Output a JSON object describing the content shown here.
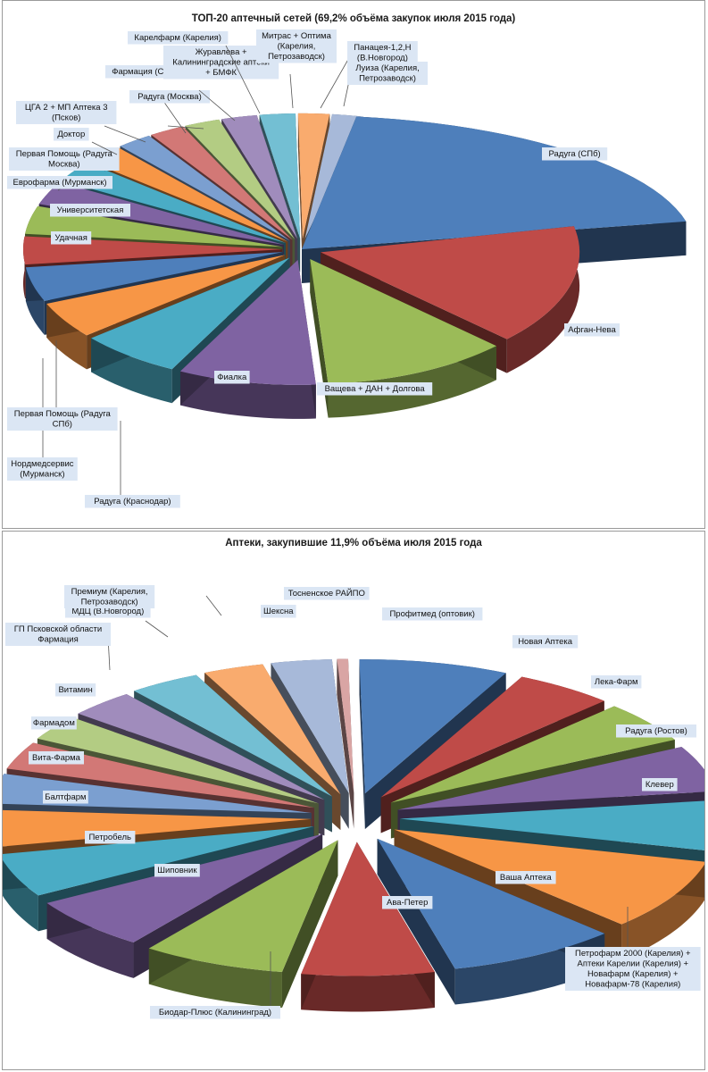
{
  "charts": [
    {
      "type": "pie",
      "title": "ТОП-20 аптечный сетей (69,2% объёма закупок июля 2015 года)",
      "slices": [
        {
          "label": "Радуга (СПб)",
          "color": "#4e7fbb"
        },
        {
          "label": "Афган-Нева",
          "color": "#bf4b48"
        },
        {
          "label": "Ващева + ДАН + Долгова",
          "color": "#9bbb58"
        },
        {
          "label": "Фиалка",
          "color": "#7f63a2"
        },
        {
          "label": "Радуга (Краснодар)",
          "color": "#4aacc5"
        },
        {
          "label": "Нордмедсервис (Мурманск)",
          "color": "#f79646"
        },
        {
          "label": "Первая Помощь (Радуга СПб)",
          "color": "#4e7fbb"
        },
        {
          "label": "Удачная",
          "color": "#bf4b48"
        },
        {
          "label": "Университетская",
          "color": "#9bbb58"
        },
        {
          "label": "Еврофарма (Мурманск)",
          "color": "#7f63a2"
        },
        {
          "label": "Первая Помощь (Радуга Москва)",
          "color": "#4aacc5"
        },
        {
          "label": "Доктор",
          "color": "#f79646"
        },
        {
          "label": "ЦГА 2 + МП Аптека 3 (Псков)",
          "color": "#7b9fd0"
        },
        {
          "label": "Фармация (Смоленск)",
          "color": "#d27876"
        },
        {
          "label": "Радуга (Москва)",
          "color": "#b3cc83"
        },
        {
          "label": "Журавлева + Калининградские аптеки + БМФК",
          "color": "#a08cbc"
        },
        {
          "label": "Карелфарм (Карелия)",
          "color": "#73bfd3"
        },
        {
          "label": "Митрас + Оптима (Карелия, Петрозаводск)",
          "color": "#f9ab6e"
        },
        {
          "label": "Панацея-1,2,Н (В.Новгород)",
          "color": "#a7b9d9"
        },
        {
          "label": "Луиза (Карелия, Петрозаводск)",
          "color": "#d9a5a4"
        }
      ]
    },
    {
      "type": "pie",
      "title": "Аптеки, закупившие 11,9% объёма июля 2015 года",
      "slices": [
        {
          "label": "Профитмед (оптовик)",
          "color": "#4e7fbb"
        },
        {
          "label": "Новая Аптека",
          "color": "#bf4b48"
        },
        {
          "label": "Лека-Фарм",
          "color": "#9bbb58"
        },
        {
          "label": "Радуга (Ростов)",
          "color": "#7f63a2"
        },
        {
          "label": "Клевер",
          "color": "#4aacc5"
        },
        {
          "label": "Петрофарм 2000 (Карелия) + Аптеки Карелии (Карелия) + Новафарм (Карелия) + Новафарм-78 (Карелия)",
          "color": "#f79646"
        },
        {
          "label": "Ваша Аптека",
          "color": "#4e7fbb"
        },
        {
          "label": "Ава-Петер",
          "color": "#bf4b48"
        },
        {
          "label": "Биодар-Плюс (Калининград)",
          "color": "#9bbb58"
        },
        {
          "label": "Шиповник",
          "color": "#7f63a2"
        },
        {
          "label": "Петробель",
          "color": "#4aacc5"
        },
        {
          "label": "Балтфарм",
          "color": "#f79646"
        },
        {
          "label": "Вита-Фарма",
          "color": "#7b9fd0"
        },
        {
          "label": "Фармадом",
          "color": "#d27876"
        },
        {
          "label": "Витамин",
          "color": "#b3cc83"
        },
        {
          "label": "ГП Псковской области Фармация",
          "color": "#a08cbc"
        },
        {
          "label": "МДЦ (В.Новгород)",
          "color": "#73bfd3"
        },
        {
          "label": "Премиум (Карелия, Петрозаводск)",
          "color": "#f9ab6e"
        },
        {
          "label": "Шексна",
          "color": "#a7b9d9"
        },
        {
          "label": "Тосненское РАЙПО",
          "color": "#d9a5a4"
        }
      ]
    }
  ]
}
